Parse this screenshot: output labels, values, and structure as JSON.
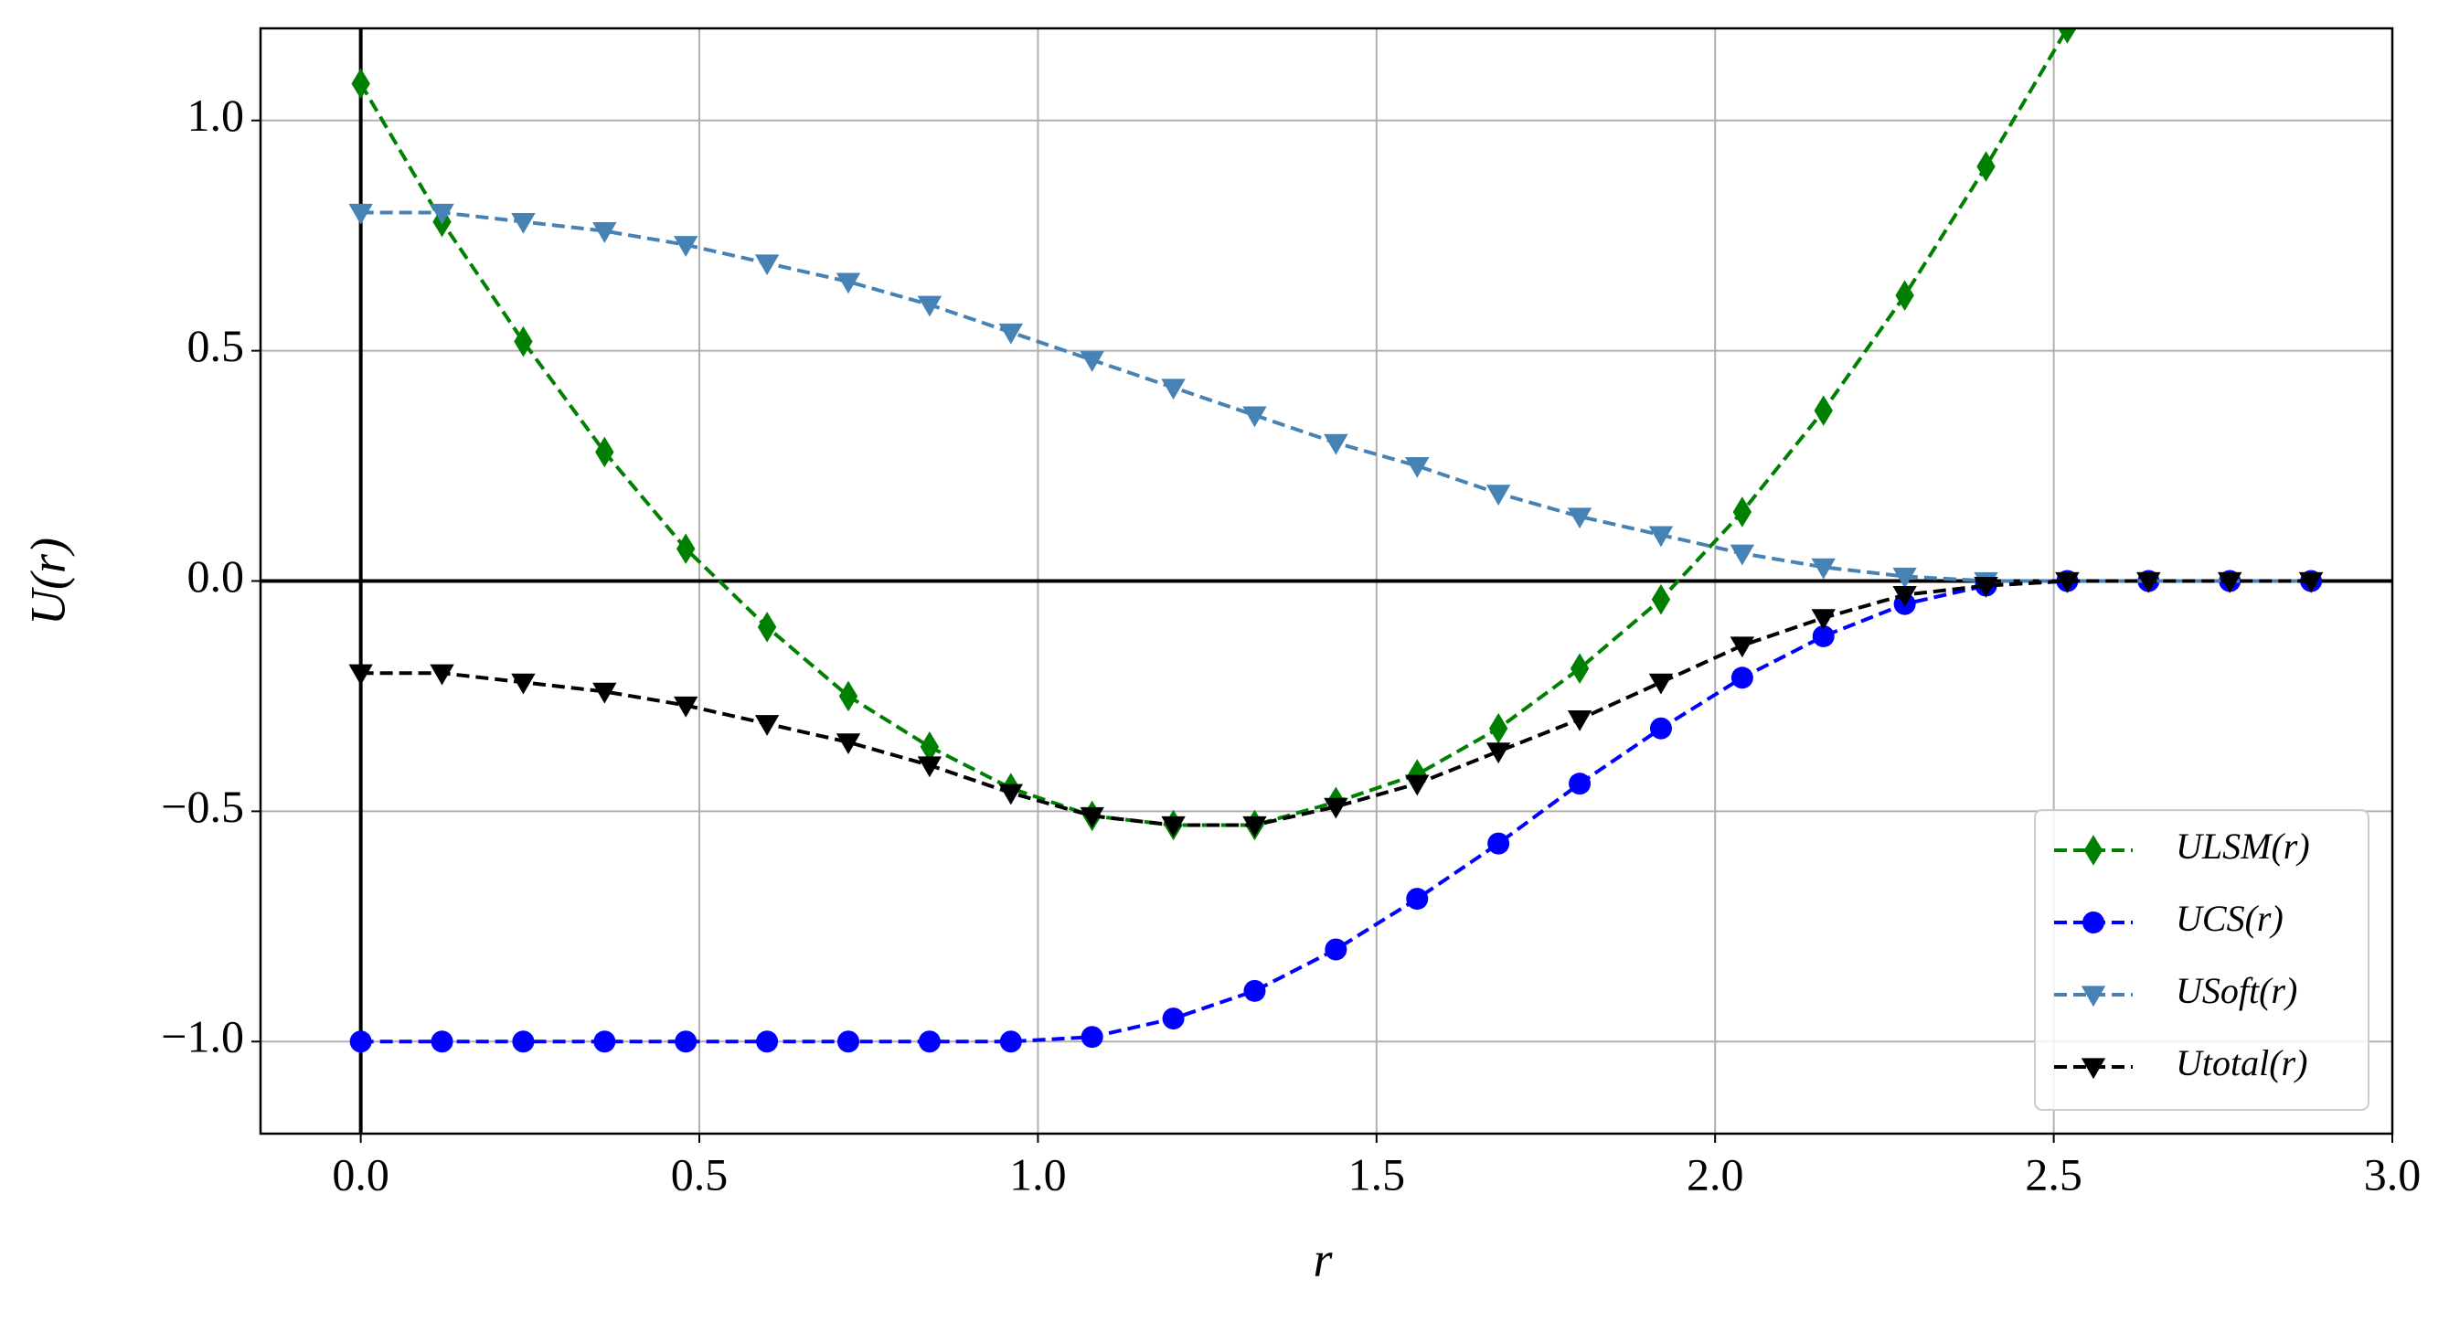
{
  "chart_data": {
    "type": "line",
    "xlabel": "r",
    "ylabel": "U(r)",
    "x": [
      0,
      0.12,
      0.24,
      0.36,
      0.48,
      0.6,
      0.72,
      0.84,
      0.96,
      1.08,
      1.2,
      1.32,
      1.44,
      1.56,
      1.68,
      1.8,
      1.92,
      2.04,
      2.16,
      2.28,
      2.4,
      2.52,
      2.64,
      2.76,
      2.88
    ],
    "series": [
      {
        "name": "ULSM(r)",
        "color": "#008000",
        "marker": "diamond",
        "values": [
          1.08,
          0.78,
          0.52,
          0.28,
          0.07,
          -0.1,
          -0.25,
          -0.36,
          -0.45,
          -0.51,
          -0.53,
          -0.53,
          -0.48,
          -0.42,
          -0.32,
          -0.19,
          -0.04,
          0.15,
          0.37,
          0.62,
          0.9,
          1.2,
          null,
          null,
          null
        ]
      },
      {
        "name": "UCS(r)",
        "color": "#0000ff",
        "marker": "circle",
        "values": [
          -1.0,
          -1.0,
          -1.0,
          -1.0,
          -1.0,
          -1.0,
          -1.0,
          -1.0,
          -1.0,
          -0.99,
          -0.95,
          -0.89,
          -0.8,
          -0.69,
          -0.57,
          -0.44,
          -0.32,
          -0.21,
          -0.12,
          -0.05,
          -0.01,
          0,
          0,
          0,
          0
        ]
      },
      {
        "name": "USoft(r)",
        "color": "#4682b4",
        "marker": "triangle-down",
        "values": [
          0.8,
          0.8,
          0.78,
          0.76,
          0.73,
          0.69,
          0.65,
          0.6,
          0.54,
          0.48,
          0.42,
          0.36,
          0.3,
          0.25,
          0.19,
          0.14,
          0.1,
          0.06,
          0.03,
          0.01,
          0.0,
          0,
          0,
          0,
          0
        ]
      },
      {
        "name": "Utotal(r)",
        "color": "#000000",
        "marker": "triangle-down",
        "values": [
          -0.2,
          -0.2,
          -0.22,
          -0.24,
          -0.27,
          -0.31,
          -0.35,
          -0.4,
          -0.46,
          -0.51,
          -0.53,
          -0.53,
          -0.49,
          -0.44,
          -0.37,
          -0.3,
          -0.22,
          -0.14,
          -0.08,
          -0.03,
          -0.01,
          0,
          0,
          0,
          0
        ]
      }
    ],
    "xlim": [
      -0.148,
      3.0
    ],
    "ylim": [
      -1.2,
      1.2
    ],
    "xticks": [
      {
        "value": 0,
        "label": "0.0"
      },
      {
        "value": 0.5,
        "label": "0.5"
      },
      {
        "value": 1,
        "label": "1.0"
      },
      {
        "value": 1.5,
        "label": "1.5"
      },
      {
        "value": 2,
        "label": "2.0"
      },
      {
        "value": 2.5,
        "label": "2.5"
      },
      {
        "value": 3,
        "label": "3.0"
      }
    ],
    "yticks": [
      {
        "value": -1,
        "label": "−1.0"
      },
      {
        "value": -0.5,
        "label": "−0.5"
      },
      {
        "value": 0,
        "label": "0.0"
      },
      {
        "value": 0.5,
        "label": "0.5"
      },
      {
        "value": 1,
        "label": "1.0"
      }
    ],
    "grid": true,
    "legend": "lower right"
  }
}
